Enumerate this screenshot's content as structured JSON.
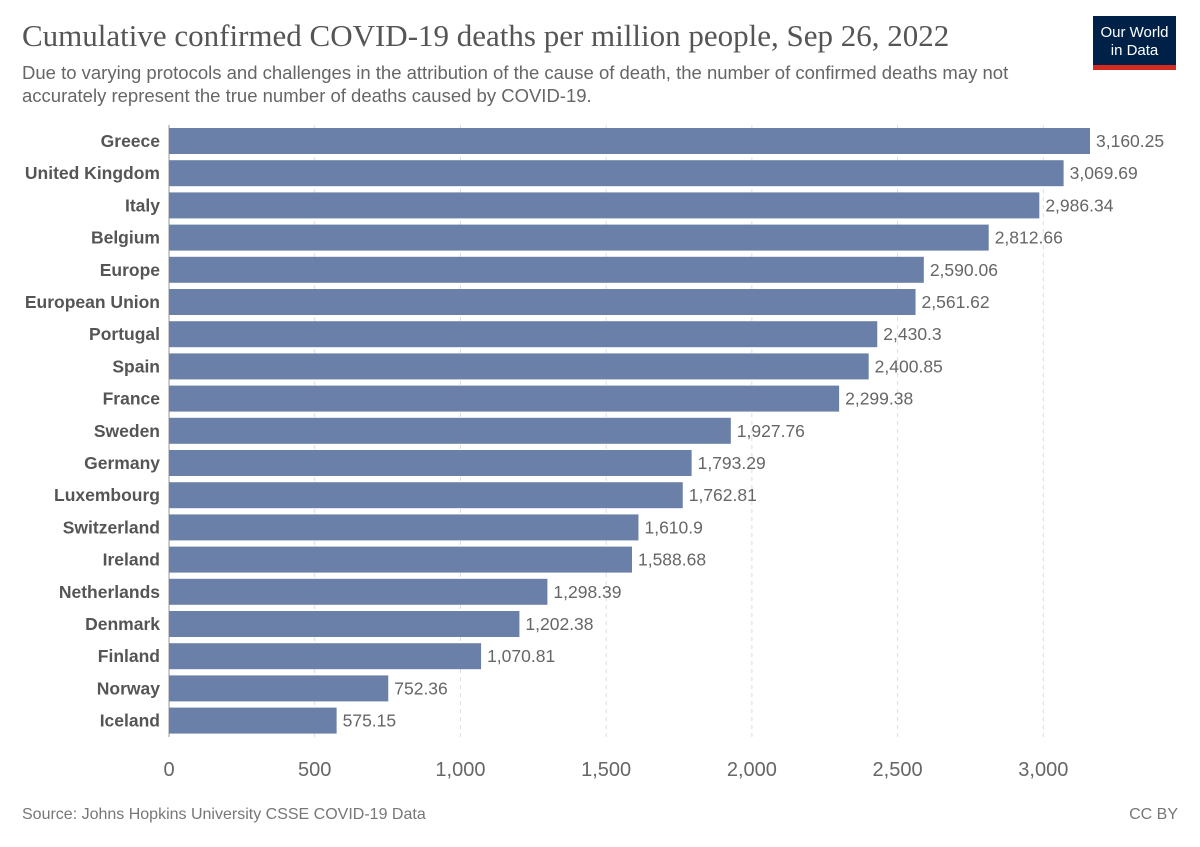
{
  "header": {
    "title": "Cumulative confirmed COVID-19 deaths per million people, Sep 26, 2022",
    "subtitle": "Due to varying protocols and challenges in the attribution of the cause of death, the number of confirmed deaths may not accurately represent the true number of deaths caused by COVID-19.",
    "logo_line1": "Our World",
    "logo_line2": "in Data"
  },
  "footer": {
    "source": "Source: Johns Hopkins University CSSE COVID-19 Data",
    "license": "CC BY"
  },
  "colors": {
    "bar": "#6a80a8",
    "grid": "#dddddd",
    "category_label": "#555555",
    "value_label": "#666666",
    "tick_label": "#666666"
  },
  "chart_data": {
    "type": "bar",
    "orientation": "horizontal",
    "title": "Cumulative confirmed COVID-19 deaths per million people, Sep 26, 2022",
    "xlabel": "",
    "ylabel": "",
    "xlim": [
      0,
      3160.25
    ],
    "grid": true,
    "categories": [
      "Greece",
      "United Kingdom",
      "Italy",
      "Belgium",
      "Europe",
      "European Union",
      "Portugal",
      "Spain",
      "France",
      "Sweden",
      "Germany",
      "Luxembourg",
      "Switzerland",
      "Ireland",
      "Netherlands",
      "Denmark",
      "Finland",
      "Norway",
      "Iceland"
    ],
    "values": [
      3160.25,
      3069.69,
      2986.34,
      2812.66,
      2590.06,
      2561.62,
      2430.3,
      2400.85,
      2299.38,
      1927.76,
      1793.29,
      1762.81,
      1610.9,
      1588.68,
      1298.39,
      1202.38,
      1070.81,
      752.36,
      575.15
    ],
    "value_labels": [
      "3,160.25",
      "3,069.69",
      "2,986.34",
      "2,812.66",
      "2,590.06",
      "2,561.62",
      "2,430.3",
      "2,400.85",
      "2,299.38",
      "1,927.76",
      "1,793.29",
      "1,762.81",
      "1,610.9",
      "1,588.68",
      "1,298.39",
      "1,202.38",
      "1,070.81",
      "752.36",
      "575.15"
    ],
    "x_ticks": [
      0,
      500,
      1000,
      1500,
      2000,
      2500,
      3000
    ],
    "x_tick_labels": [
      "0",
      "500",
      "1,000",
      "1,500",
      "2,000",
      "2,500",
      "3,000"
    ]
  }
}
